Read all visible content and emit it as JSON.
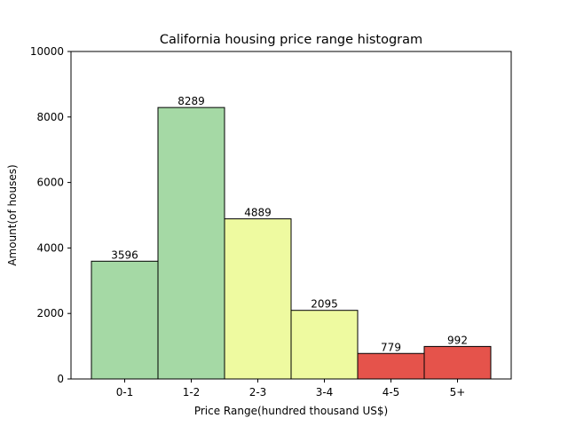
{
  "chart_data": {
    "type": "bar",
    "title": "California housing price range histogram",
    "xlabel": "Price Range(hundred thousand US$)",
    "ylabel": "Amount(of houses)",
    "categories": [
      "0-1",
      "1-2",
      "2-3",
      "3-4",
      "4-5",
      "5+"
    ],
    "values": [
      3596,
      8289,
      4889,
      2095,
      779,
      992
    ],
    "data_labels": [
      "3596",
      "8289",
      "4889",
      "2095",
      "779",
      "992"
    ],
    "colors": [
      "#a5d9a5",
      "#a5d9a5",
      "#eefaa0",
      "#eefaa0",
      "#e5534b",
      "#e5534b"
    ],
    "ylim": [
      0,
      10000
    ],
    "yticks": [
      0,
      2000,
      4000,
      6000,
      8000,
      10000
    ],
    "ytick_labels": [
      "0",
      "2000",
      "4000",
      "6000",
      "8000",
      "10000"
    ],
    "grid": false,
    "legend": false
  }
}
